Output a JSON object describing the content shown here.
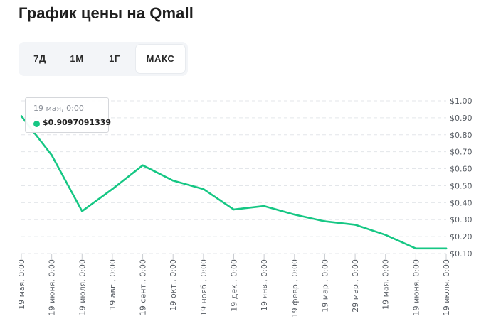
{
  "header": {
    "title": "График цены на Qmall"
  },
  "range_tabs": [
    {
      "label": "7Д",
      "active": false
    },
    {
      "label": "1М",
      "active": false
    },
    {
      "label": "1Г",
      "active": false
    },
    {
      "label": "МАКС",
      "active": true
    }
  ],
  "tooltip": {
    "date": "19 мая, 0:00",
    "value": "$0.9097091339"
  },
  "colors": {
    "line": "#16c784",
    "grid": "#e3e6ea",
    "text": "#555a61"
  },
  "chart_data": {
    "type": "line",
    "title": "График цены на Qmall",
    "x": [
      "19 мая, 0:00",
      "19 июня, 0:00",
      "19 июля, 0:00",
      "19 авг., 0:00",
      "19 сент., 0:00",
      "19 окт., 0:00",
      "19 нояб., 0:00",
      "19 дек., 0:00",
      "19 янв., 0:00",
      "19 февр., 0:00",
      "19 мар., 0:00",
      "29 мар., 0:00",
      "19 мая, 0:00",
      "19 июня, 0:00",
      "19 июля, 0:00"
    ],
    "series": [
      {
        "values": [
          0.91,
          0.68,
          0.35,
          0.48,
          0.62,
          0.53,
          0.48,
          0.36,
          0.38,
          0.33,
          0.29,
          0.27,
          0.21,
          0.13,
          0.13
        ]
      }
    ],
    "y_ticks": [
      "$1.00",
      "$0.90",
      "$0.80",
      "$0.70",
      "$0.60",
      "$0.50",
      "$0.40",
      "$0.30",
      "$0.20",
      "$0.10"
    ],
    "ylim": [
      0.1,
      1.0
    ],
    "grid": true,
    "y_axis_position": "right"
  }
}
